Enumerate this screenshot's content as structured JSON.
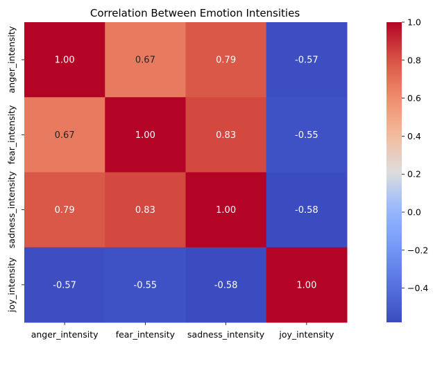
{
  "chart_data": {
    "type": "heatmap",
    "title": "Correlation Between Emotion Intensities",
    "x_categories": [
      "anger_intensity",
      "fear_intensity",
      "sadness_intensity",
      "joy_intensity"
    ],
    "y_categories": [
      "anger_intensity",
      "fear_intensity",
      "sadness_intensity",
      "joy_intensity"
    ],
    "values": [
      [
        1.0,
        0.67,
        0.79,
        -0.57
      ],
      [
        0.67,
        1.0,
        0.83,
        -0.55
      ],
      [
        0.79,
        0.83,
        1.0,
        -0.58
      ],
      [
        -0.57,
        -0.55,
        -0.58,
        1.0
      ]
    ],
    "value_format": "0.00",
    "colormap": "coolwarm",
    "color_range": [
      -0.58,
      1.0
    ],
    "colorbar_ticks": [
      "1.0",
      "0.8",
      "0.6",
      "0.4",
      "0.2",
      "0.0",
      "−0.2",
      "−0.4"
    ],
    "colorbar_tick_values": [
      1.0,
      0.8,
      0.6,
      0.4,
      0.2,
      0.0,
      -0.2,
      -0.4
    ],
    "grid": false,
    "legend": "colorbar-right"
  }
}
